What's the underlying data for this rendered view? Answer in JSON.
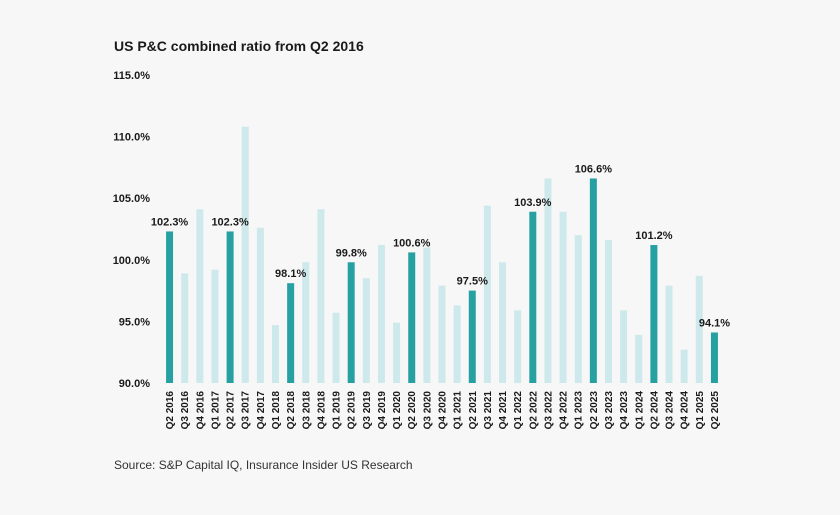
{
  "title": "US P&C combined ratio from Q2 2016",
  "source": "Source: S&P Capital IQ, Insurance Insider US Research",
  "colors": {
    "highlight": "#27a0a2",
    "muted": "#cde9ec",
    "background": "#f7f7f7"
  },
  "chart_data": {
    "type": "bar",
    "title": "US P&C combined ratio from Q2 2016",
    "xlabel": "",
    "ylabel": "",
    "ylim": [
      90,
      115
    ],
    "yticks": [
      90,
      95,
      100,
      105,
      110,
      115
    ],
    "ytick_labels": [
      "90.0%",
      "95.0%",
      "100.0%",
      "105.0%",
      "110.0%",
      "115.0%"
    ],
    "grid": false,
    "categories": [
      "Q2 2016",
      "Q3 2016",
      "Q4 2016",
      "Q1 2017",
      "Q2 2017",
      "Q3 2017",
      "Q4 2017",
      "Q1 2018",
      "Q2 2018",
      "Q3 2018",
      "Q4 2018",
      "Q1 2019",
      "Q2 2019",
      "Q3 2019",
      "Q4 2019",
      "Q1 2020",
      "Q2 2020",
      "Q3 2020",
      "Q4 2020",
      "Q1 2021",
      "Q2 2021",
      "Q3 2021",
      "Q4 2021",
      "Q1 2022",
      "Q2 2022",
      "Q3 2022",
      "Q4 2022",
      "Q1 2023",
      "Q2 2023",
      "Q3 2023",
      "Q4 2023",
      "Q1 2024",
      "Q2 2024",
      "Q3 2024",
      "Q4 2024",
      "Q1 2025",
      "Q2 2025"
    ],
    "values": [
      102.3,
      98.9,
      104.1,
      99.2,
      102.3,
      110.8,
      102.6,
      94.7,
      98.1,
      99.8,
      104.1,
      95.7,
      99.8,
      98.5,
      101.2,
      94.9,
      100.6,
      101.0,
      97.9,
      96.3,
      97.5,
      104.4,
      99.8,
      95.9,
      103.9,
      106.6,
      103.9,
      102.0,
      106.6,
      101.6,
      95.9,
      93.9,
      101.2,
      97.9,
      92.7,
      98.7,
      94.1
    ],
    "highlighted": [
      true,
      false,
      false,
      false,
      true,
      false,
      false,
      false,
      true,
      false,
      false,
      false,
      true,
      false,
      false,
      false,
      true,
      false,
      false,
      false,
      true,
      false,
      false,
      false,
      true,
      false,
      false,
      false,
      true,
      false,
      false,
      false,
      true,
      false,
      false,
      false,
      true
    ],
    "data_labels": [
      "102.3%",
      "",
      "",
      "",
      "102.3%",
      "",
      "",
      "",
      "98.1%",
      "",
      "",
      "",
      "99.8%",
      "",
      "",
      "",
      "100.6%",
      "",
      "",
      "",
      "97.5%",
      "",
      "",
      "",
      "103.9%",
      "",
      "",
      "",
      "106.6%",
      "",
      "",
      "",
      "101.2%",
      "",
      "",
      "",
      "94.1%"
    ]
  }
}
